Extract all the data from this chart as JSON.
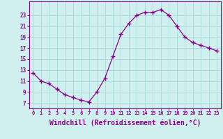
{
  "x": [
    0,
    1,
    2,
    3,
    4,
    5,
    6,
    7,
    8,
    9,
    10,
    11,
    12,
    13,
    14,
    15,
    16,
    17,
    18,
    19,
    20,
    21,
    22,
    23
  ],
  "y": [
    12.5,
    11.0,
    10.5,
    9.5,
    8.5,
    8.0,
    7.5,
    7.2,
    9.0,
    11.5,
    15.5,
    19.5,
    21.5,
    23.0,
    23.5,
    23.5,
    24.0,
    23.0,
    21.0,
    19.0,
    18.0,
    17.5,
    17.0,
    16.5
  ],
  "line_color": "#880088",
  "marker": "+",
  "marker_size": 4,
  "bg_color": "#d0f0f0",
  "grid_color": "#aadddd",
  "xlabel": "Windchill (Refroidissement éolien,°C)",
  "ytick_labels": [
    "7",
    "9",
    "11",
    "13",
    "15",
    "17",
    "19",
    "21",
    "23"
  ],
  "ytick_values": [
    7,
    9,
    11,
    13,
    15,
    17,
    19,
    21,
    23
  ],
  "xtick_labels": [
    "0",
    "1",
    "2",
    "3",
    "4",
    "5",
    "6",
    "7",
    "8",
    "9",
    "10",
    "11",
    "12",
    "13",
    "14",
    "15",
    "16",
    "17",
    "18",
    "19",
    "20",
    "21",
    "22",
    "23"
  ],
  "ylim": [
    6.0,
    25.5
  ],
  "xlim": [
    -0.5,
    23.5
  ]
}
